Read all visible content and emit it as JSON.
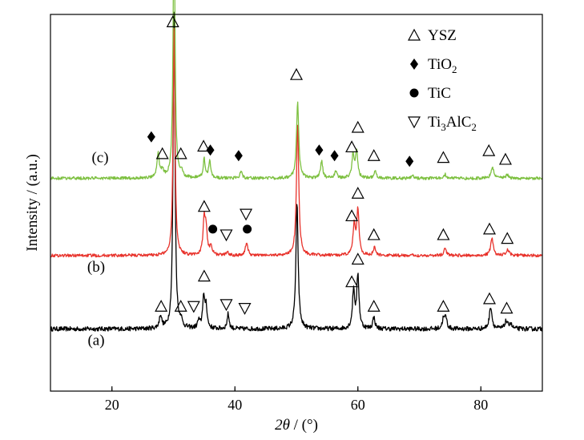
{
  "chart_data": {
    "type": "line",
    "title": "",
    "xlabel_var": "2θ",
    "xlabel_unit": " / (°)",
    "ylabel": "Intensity / (a.u.)",
    "xlim": [
      10,
      90
    ],
    "xticks": [
      20,
      40,
      60,
      80
    ],
    "ylim": [
      0,
      1
    ],
    "yticks_visible": false,
    "colors": {
      "a": "#000000",
      "b": "#e8322b",
      "c": "#7dc040"
    },
    "series": [
      {
        "id": "a",
        "name": "(a)",
        "label": "(a)",
        "baseline": 0.165,
        "noise": 0.006,
        "peaks": [
          {
            "x": 27.9,
            "h": 0.035,
            "w": 0.22
          },
          {
            "x": 30.1,
            "h": 0.86,
            "w": 0.18
          },
          {
            "x": 31.2,
            "h": 0.02,
            "w": 0.2
          },
          {
            "x": 34.1,
            "h": 0.02,
            "w": 0.2
          },
          {
            "x": 34.9,
            "h": 0.08,
            "w": 0.2
          },
          {
            "x": 35.3,
            "h": 0.06,
            "w": 0.2
          },
          {
            "x": 38.9,
            "h": 0.04,
            "w": 0.2
          },
          {
            "x": 50.1,
            "h": 0.33,
            "w": 0.22
          },
          {
            "x": 59.3,
            "h": 0.1,
            "w": 0.22
          },
          {
            "x": 60.0,
            "h": 0.14,
            "w": 0.22
          },
          {
            "x": 62.6,
            "h": 0.03,
            "w": 0.22
          },
          {
            "x": 73.9,
            "h": 0.025,
            "w": 0.22
          },
          {
            "x": 74.3,
            "h": 0.03,
            "w": 0.22
          },
          {
            "x": 81.6,
            "h": 0.06,
            "w": 0.25
          },
          {
            "x": 84.1,
            "h": 0.02,
            "w": 0.25
          },
          {
            "x": 84.8,
            "h": 0.015,
            "w": 0.25
          }
        ]
      },
      {
        "id": "b",
        "name": "(b)",
        "label": "(b)",
        "baseline": 0.36,
        "noise": 0.004,
        "peaks": [
          {
            "x": 30.1,
            "h": 0.62,
            "w": 0.18
          },
          {
            "x": 35.0,
            "h": 0.09,
            "w": 0.22
          },
          {
            "x": 35.3,
            "h": 0.06,
            "w": 0.22
          },
          {
            "x": 36.1,
            "h": 0.025,
            "w": 0.22
          },
          {
            "x": 38.8,
            "h": 0.01,
            "w": 0.22
          },
          {
            "x": 41.9,
            "h": 0.035,
            "w": 0.22
          },
          {
            "x": 50.2,
            "h": 0.35,
            "w": 0.22
          },
          {
            "x": 59.4,
            "h": 0.08,
            "w": 0.22
          },
          {
            "x": 60.0,
            "h": 0.12,
            "w": 0.22
          },
          {
            "x": 62.7,
            "h": 0.02,
            "w": 0.22
          },
          {
            "x": 74.2,
            "h": 0.02,
            "w": 0.22
          },
          {
            "x": 81.8,
            "h": 0.045,
            "w": 0.25
          },
          {
            "x": 84.4,
            "h": 0.015,
            "w": 0.25
          }
        ]
      },
      {
        "id": "c",
        "name": "(c)",
        "label": "(c)",
        "baseline": 0.565,
        "noise": 0.004,
        "peaks": [
          {
            "x": 27.5,
            "h": 0.065,
            "w": 0.22
          },
          {
            "x": 28.2,
            "h": 0.02,
            "w": 0.22
          },
          {
            "x": 30.1,
            "h": 0.7,
            "w": 0.18
          },
          {
            "x": 31.3,
            "h": 0.015,
            "w": 0.2
          },
          {
            "x": 35.0,
            "h": 0.05,
            "w": 0.2
          },
          {
            "x": 35.9,
            "h": 0.045,
            "w": 0.2
          },
          {
            "x": 41.0,
            "h": 0.02,
            "w": 0.22
          },
          {
            "x": 50.2,
            "h": 0.2,
            "w": 0.22
          },
          {
            "x": 54.1,
            "h": 0.045,
            "w": 0.22
          },
          {
            "x": 56.4,
            "h": 0.02,
            "w": 0.22
          },
          {
            "x": 59.2,
            "h": 0.06,
            "w": 0.22
          },
          {
            "x": 59.8,
            "h": 0.07,
            "w": 0.22
          },
          {
            "x": 62.8,
            "h": 0.02,
            "w": 0.22
          },
          {
            "x": 68.9,
            "h": 0.01,
            "w": 0.22
          },
          {
            "x": 74.2,
            "h": 0.01,
            "w": 0.22
          },
          {
            "x": 81.9,
            "h": 0.03,
            "w": 0.25
          },
          {
            "x": 84.3,
            "h": 0.01,
            "w": 0.25
          }
        ]
      }
    ],
    "markers": [
      {
        "s": "tri-up",
        "x": 28.0,
        "y": 0.225
      },
      {
        "s": "tri-up",
        "x": 31.2,
        "y": 0.225
      },
      {
        "s": "tri-down",
        "x": 33.3,
        "y": 0.225
      },
      {
        "s": "tri-up",
        "x": 35.0,
        "y": 0.305
      },
      {
        "s": "tri-down",
        "x": 38.6,
        "y": 0.23
      },
      {
        "s": "tri-down",
        "x": 41.6,
        "y": 0.22
      },
      {
        "s": "tri-up",
        "x": 59.0,
        "y": 0.29
      },
      {
        "s": "tri-up",
        "x": 60.0,
        "y": 0.35
      },
      {
        "s": "tri-up",
        "x": 62.6,
        "y": 0.225
      },
      {
        "s": "tri-up",
        "x": 73.9,
        "y": 0.225
      },
      {
        "s": "tri-up",
        "x": 81.4,
        "y": 0.245
      },
      {
        "s": "tri-up",
        "x": 84.2,
        "y": 0.22
      },
      {
        "s": "tri-up",
        "x": 35.0,
        "y": 0.49
      },
      {
        "s": "dot",
        "x": 36.4,
        "y": 0.43
      },
      {
        "s": "tri-down",
        "x": 38.6,
        "y": 0.415
      },
      {
        "s": "tri-down",
        "x": 41.8,
        "y": 0.47
      },
      {
        "s": "dot",
        "x": 42.0,
        "y": 0.43
      },
      {
        "s": "tri-up",
        "x": 59.0,
        "y": 0.465
      },
      {
        "s": "tri-up",
        "x": 60.0,
        "y": 0.525
      },
      {
        "s": "tri-up",
        "x": 62.6,
        "y": 0.415
      },
      {
        "s": "tri-up",
        "x": 73.9,
        "y": 0.415
      },
      {
        "s": "tri-up",
        "x": 81.4,
        "y": 0.43
      },
      {
        "s": "tri-up",
        "x": 84.3,
        "y": 0.405
      },
      {
        "s": "diamond",
        "x": 26.4,
        "y": 0.675
      },
      {
        "s": "tri-up",
        "x": 28.2,
        "y": 0.63
      },
      {
        "s": "tri-up",
        "x": 31.2,
        "y": 0.63
      },
      {
        "s": "tri-up",
        "x": 29.9,
        "y": 0.98
      },
      {
        "s": "tri-up",
        "x": 34.9,
        "y": 0.65
      },
      {
        "s": "diamond",
        "x": 36.0,
        "y": 0.64
      },
      {
        "s": "diamond",
        "x": 40.6,
        "y": 0.625
      },
      {
        "s": "tri-up",
        "x": 50.0,
        "y": 0.84
      },
      {
        "s": "diamond",
        "x": 53.7,
        "y": 0.64
      },
      {
        "s": "diamond",
        "x": 56.2,
        "y": 0.625
      },
      {
        "s": "tri-up",
        "x": 59.0,
        "y": 0.648
      },
      {
        "s": "tri-up",
        "x": 60.0,
        "y": 0.7
      },
      {
        "s": "tri-up",
        "x": 62.6,
        "y": 0.625
      },
      {
        "s": "diamond",
        "x": 68.4,
        "y": 0.61
      },
      {
        "s": "tri-up",
        "x": 73.9,
        "y": 0.62
      },
      {
        "s": "tri-up",
        "x": 81.3,
        "y": 0.638
      },
      {
        "s": "tri-up",
        "x": 84.0,
        "y": 0.615
      }
    ],
    "legend": {
      "position": "top-right",
      "entries": [
        {
          "symbol": "tri-up",
          "parts": [
            {
              "t": "YSZ"
            }
          ]
        },
        {
          "symbol": "diamond",
          "parts": [
            {
              "t": "TiO"
            },
            {
              "t": "2",
              "sub": true
            }
          ]
        },
        {
          "symbol": "dot",
          "parts": [
            {
              "t": "TiC"
            }
          ]
        },
        {
          "symbol": "tri-down",
          "parts": [
            {
              "t": "Ti"
            },
            {
              "t": "3",
              "sub": true
            },
            {
              "t": "AlC"
            },
            {
              "t": "2",
              "sub": true
            }
          ]
        }
      ]
    }
  }
}
